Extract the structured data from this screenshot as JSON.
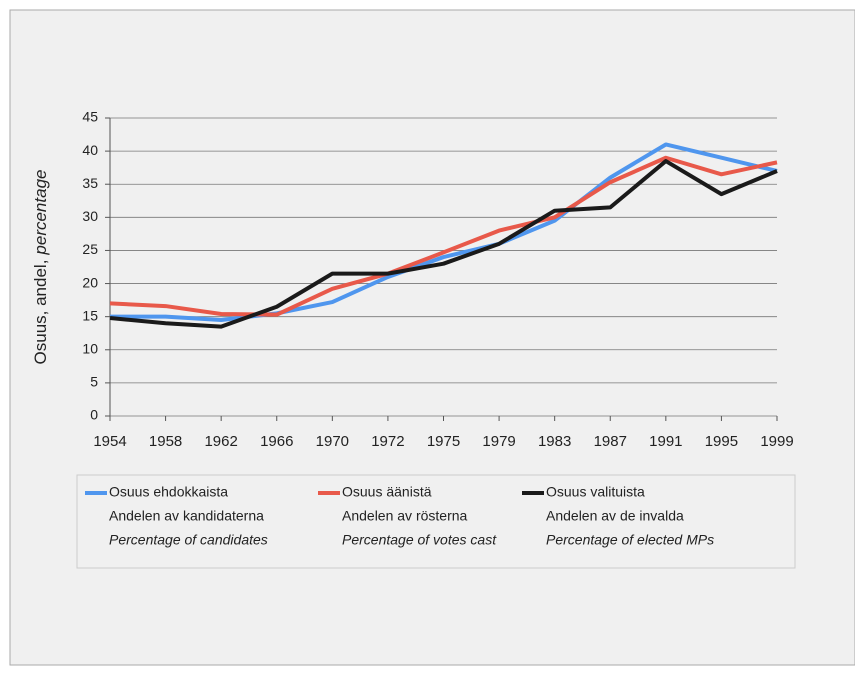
{
  "chart_data": {
    "type": "line",
    "y_label": [
      "Osuus, andel,",
      "percentage"
    ],
    "categories": [
      "1954",
      "1958",
      "1962",
      "1966",
      "1970",
      "1972",
      "1975",
      "1979",
      "1983",
      "1987",
      "1991",
      "1995",
      "1999"
    ],
    "series": [
      {
        "name": "Osuus ehdokkaista",
        "name_sv": "Andelen av kandidaterna",
        "name_en": "Percentage of candidates",
        "color": "#4f96ee",
        "values": [
          15,
          15,
          14.5,
          15.5,
          17.2,
          21,
          24,
          26,
          29.5,
          36,
          41,
          39,
          37
        ]
      },
      {
        "name": "Osuus äänistä",
        "name_sv": "Andelen av rösterna",
        "name_en": "Percentage of votes cast",
        "color": "#e8594a",
        "values": [
          17,
          16.6,
          15.4,
          15.3,
          19.2,
          21.5,
          24.7,
          28,
          30,
          35.3,
          39,
          36.5,
          38.3
        ]
      },
      {
        "name": "Osuus valituista",
        "name_sv": "Andelen av de invalda",
        "name_en": "Percentage of elected MPs",
        "color": "#1a1a1a",
        "values": [
          14.8,
          14,
          13.5,
          16.5,
          21.5,
          21.5,
          23,
          26,
          31,
          31.5,
          38.5,
          33.5,
          37
        ]
      }
    ],
    "ylim": [
      0,
      45
    ],
    "yticks": [
      0,
      5,
      10,
      15,
      20,
      25,
      30,
      35,
      40,
      45
    ],
    "grid": true
  }
}
